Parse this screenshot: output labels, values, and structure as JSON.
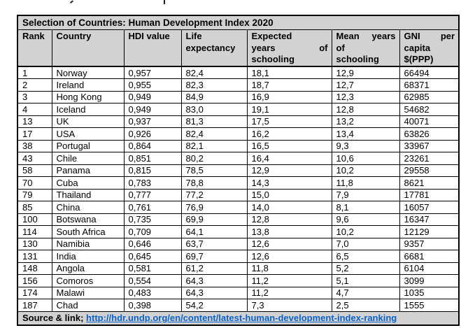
{
  "colors": {
    "header_bg": "#d2d2d2",
    "border": "#000000",
    "text": "#000000",
    "link": "#0b62c5"
  },
  "table": {
    "title": "Selection of Countries: Human Development Index 2020",
    "columns": [
      {
        "label": "Rank",
        "lines": [
          [
            "Rank"
          ]
        ]
      },
      {
        "label": "Country",
        "lines": [
          [
            "Country"
          ]
        ]
      },
      {
        "label": "HDI value",
        "lines": [
          [
            "HDI value"
          ]
        ]
      },
      {
        "label": "Life expectancy",
        "lines": [
          [
            "Life"
          ],
          [
            "expectancy"
          ]
        ]
      },
      {
        "label": "Expected years of schooling",
        "lines": [
          [
            "Expected"
          ],
          [
            "years",
            "of"
          ],
          [
            "schooling"
          ]
        ]
      },
      {
        "label": "Mean years of schooling",
        "lines": [
          [
            "Mean",
            "years"
          ],
          [
            "of"
          ],
          [
            "schooling"
          ]
        ]
      },
      {
        "label": "GNI per capita $(PPP)",
        "lines": [
          [
            "GNI",
            "per"
          ],
          [
            "capita"
          ],
          [
            "$(PPP)"
          ]
        ]
      }
    ],
    "rows": [
      [
        "1",
        "Norway",
        "0,957",
        "82,4",
        "18,1",
        "12,9",
        "66494"
      ],
      [
        "2",
        "Ireland",
        "0,955",
        "82,3",
        "18,7",
        "12,7",
        "68371"
      ],
      [
        "3",
        "Hong Kong",
        "0,949",
        "84,9",
        "16,9",
        "12,3",
        "62985"
      ],
      [
        "4",
        "Iceland",
        "0,949",
        "83,0",
        "19,1",
        "12,8",
        "54682"
      ],
      [
        "13",
        "UK",
        "0,937",
        "81,3",
        "17,5",
        "13,2",
        "40071"
      ],
      [
        "17",
        "USA",
        "0,926",
        "82,4",
        "16,2",
        "13,4",
        "63826"
      ],
      [
        "38",
        "Portugal",
        "0,864",
        "82,1",
        "16,5",
        "9,3",
        "33967"
      ],
      [
        "43",
        "Chile",
        "0,851",
        "80,2",
        "16,4",
        "10,6",
        "23261"
      ],
      [
        "58",
        "Panama",
        "0,815",
        "78,5",
        "12,9",
        "10,2",
        "29558"
      ],
      [
        "70",
        "Cuba",
        "0,783",
        "78,8",
        "14,3",
        "11,8",
        "8621"
      ],
      [
        "79",
        "Thailand",
        "0,777",
        "77,2",
        "15,0",
        "7,9",
        "17781"
      ],
      [
        "85",
        "China",
        "0,761",
        "76,9",
        "14,0",
        "8,1",
        "16057"
      ],
      [
        "100",
        "Botswana",
        "0,735",
        "69,9",
        "12,8",
        "9,6",
        "16347"
      ],
      [
        "114",
        "South Africa",
        "0,709",
        "64,1",
        "13,8",
        "10,2",
        "12129"
      ],
      [
        "130",
        "Namibia",
        "0,646",
        "63,7",
        "12,6",
        "7,0",
        "9357"
      ],
      [
        "131",
        "India",
        "0,645",
        "69,7",
        "12,6",
        "6,5",
        "6681"
      ],
      [
        "148",
        "Angola",
        "0,581",
        "61,2",
        "11,8",
        "5,2",
        "6104"
      ],
      [
        "156",
        "Comoros",
        "0,554",
        "64,3",
        "11,2",
        "5,1",
        "3099"
      ],
      [
        "174",
        "Malawi",
        "0,483",
        "64,3",
        "11,2",
        "4,7",
        "1035"
      ],
      [
        "187",
        "Chad",
        "0,398",
        "54,2",
        "7,3",
        "2,5",
        "1555"
      ]
    ],
    "source": {
      "label": "Source & link;",
      "url": "http://hdr.undp.org/en/content/latest-human-development-index-ranking"
    }
  }
}
